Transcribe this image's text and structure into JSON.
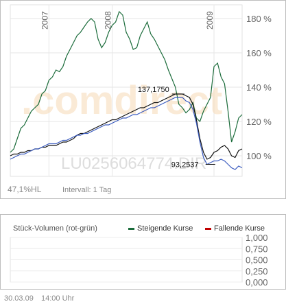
{
  "chart_data": [
    {
      "type": "line",
      "watermark": ".comdirect",
      "isin_watermark": "LU0256064774.DIR",
      "x_ticks": [
        "2007",
        "2008",
        "2009"
      ],
      "y_ticks": [
        "180 %",
        "160 %",
        "140 %",
        "120 %",
        "100 %"
      ],
      "ylim": [
        88,
        188
      ],
      "grid": true,
      "annotations": {
        "high": "137,1750",
        "low": "93,2537"
      },
      "series": [
        {
          "color": "#1a6b3a",
          "x": [
            0,
            1,
            2,
            3,
            4,
            5,
            6,
            7,
            8,
            9,
            10,
            11,
            12,
            13,
            14,
            15,
            16,
            17,
            18,
            19,
            20,
            21,
            22,
            23,
            24,
            25,
            26,
            27,
            28,
            29,
            30,
            31,
            32,
            33,
            34,
            35,
            36,
            37,
            38,
            39,
            40,
            41,
            42,
            43,
            44,
            45,
            46,
            47,
            48,
            49,
            50,
            51,
            52,
            53,
            54,
            55,
            56,
            57,
            58,
            59,
            60,
            61,
            62,
            63,
            64,
            65,
            66
          ],
          "values": [
            102,
            104,
            110,
            116,
            118,
            122,
            126,
            128,
            130,
            136,
            138,
            144,
            146,
            150,
            149,
            152,
            158,
            162,
            166,
            170,
            172,
            175,
            178,
            180,
            178,
            168,
            163,
            166,
            172,
            176,
            178,
            184,
            182,
            172,
            168,
            162,
            163,
            170,
            174,
            178,
            171,
            168,
            164,
            160,
            156,
            150,
            145,
            140,
            130,
            128,
            125,
            127,
            131,
            122,
            120,
            126,
            130,
            134,
            152,
            154,
            146,
            142,
            126,
            108,
            114,
            122,
            124
          ]
        },
        {
          "color": "#111111",
          "x": [
            0,
            1,
            2,
            3,
            4,
            5,
            6,
            7,
            8,
            9,
            10,
            11,
            12,
            13,
            14,
            15,
            16,
            17,
            18,
            19,
            20,
            21,
            22,
            23,
            24,
            25,
            26,
            27,
            28,
            29,
            30,
            31,
            32,
            33,
            34,
            35,
            36,
            37,
            38,
            39,
            40,
            41,
            42,
            43,
            44,
            45,
            46,
            47,
            48,
            49,
            50,
            51,
            52,
            53,
            54,
            55,
            56,
            57,
            58,
            59,
            60,
            61,
            62,
            63,
            64,
            65,
            66
          ],
          "values": [
            100,
            101,
            101,
            102,
            102,
            103,
            103,
            104,
            104,
            105,
            105,
            106,
            106,
            106,
            107,
            108,
            108,
            109,
            110,
            112,
            113,
            113,
            114,
            115,
            116,
            117,
            118,
            119,
            120,
            121,
            121,
            122,
            123,
            124,
            125,
            126,
            127,
            128,
            128,
            129,
            130,
            131,
            131,
            132,
            133,
            134,
            135,
            136,
            136,
            136,
            135,
            134,
            130,
            121,
            110,
            102,
            98,
            99,
            102,
            103,
            105,
            106,
            104,
            100,
            99,
            103,
            104
          ]
        },
        {
          "color": "#3a5bbf",
          "x": [
            0,
            1,
            2,
            3,
            4,
            5,
            6,
            7,
            8,
            9,
            10,
            11,
            12,
            13,
            14,
            15,
            16,
            17,
            18,
            19,
            20,
            21,
            22,
            23,
            24,
            25,
            26,
            27,
            28,
            29,
            30,
            31,
            32,
            33,
            34,
            35,
            36,
            37,
            38,
            39,
            40,
            41,
            42,
            43,
            44,
            45,
            46,
            47,
            48,
            49,
            50,
            51,
            52,
            53,
            54,
            55,
            56,
            57,
            58,
            59,
            60,
            61,
            62,
            63,
            64,
            65,
            66
          ],
          "values": [
            98,
            99,
            100,
            101,
            101,
            102,
            103,
            104,
            104,
            105,
            106,
            107,
            107,
            107,
            108,
            109,
            109,
            110,
            111,
            112,
            112,
            113,
            113,
            114,
            115,
            116,
            117,
            118,
            118,
            119,
            120,
            121,
            122,
            122,
            123,
            124,
            124,
            125,
            126,
            127,
            128,
            128,
            129,
            130,
            131,
            132,
            133,
            134,
            134,
            134,
            132,
            131,
            127,
            119,
            108,
            99,
            95,
            96,
            97,
            97,
            98,
            97,
            95,
            93,
            92,
            94,
            93
          ]
        }
      ]
    },
    {
      "type": "line",
      "title": "Stück-Volumen (rot-grün)",
      "legend": [
        {
          "label": "Steigende Kurse",
          "color": "#1a6b3a"
        },
        {
          "label": "Fallende Kurse",
          "color": "#c00000"
        }
      ],
      "y_ticks": [
        "1,000",
        "0,750",
        "0,500",
        "0,250",
        "0,000"
      ],
      "ylim": [
        0,
        1
      ],
      "series": []
    }
  ],
  "footer_top": {
    "left": "47,1%HL",
    "right": "Intervall: 1 Tag"
  },
  "footer_bottom": {
    "date": "30.03.09",
    "time": "14:00 Uhr"
  }
}
